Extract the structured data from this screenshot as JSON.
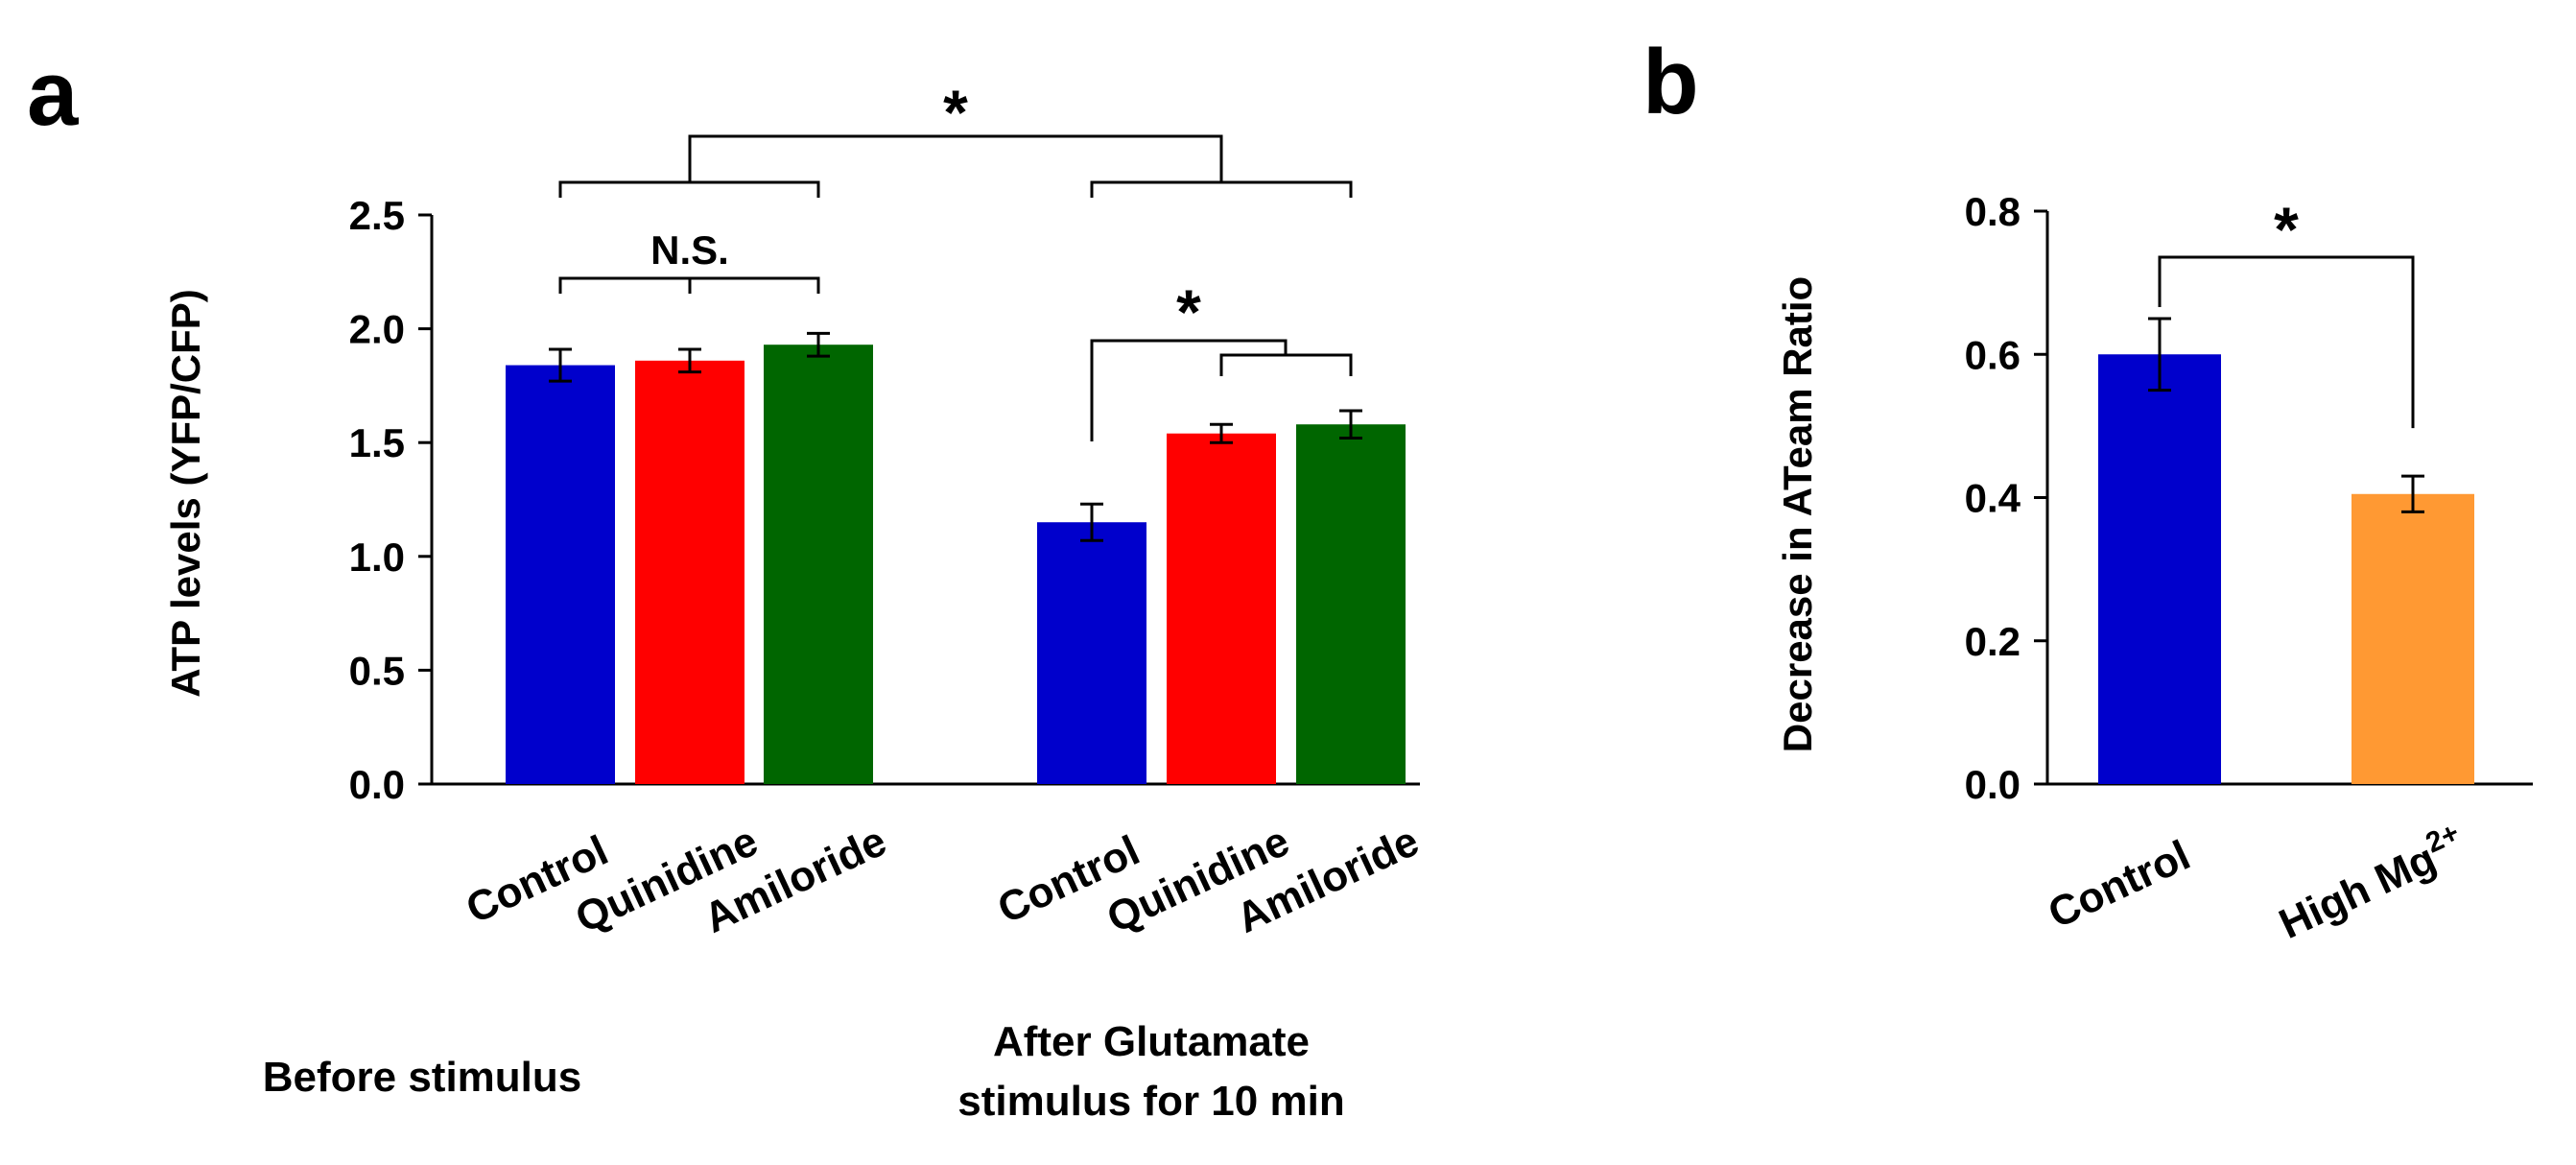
{
  "chart_data": [
    {
      "panel": "a",
      "type": "bar",
      "ylabel": "ATP levels (YFP/CFP)",
      "ylim": [
        0,
        2.5
      ],
      "yticks": [
        "0.0",
        "0.5",
        "1.0",
        "1.5",
        "2.0",
        "2.5"
      ],
      "groups": [
        {
          "name": "Before stimulus",
          "label_lines": [
            "Before stimulus"
          ],
          "bars": [
            {
              "category": "Control",
              "value": 1.84,
              "error": 0.07,
              "color": "#0000CC"
            },
            {
              "category": "Quinidine",
              "value": 1.86,
              "error": 0.05,
              "color": "#FF0000"
            },
            {
              "category": "Amiloride",
              "value": 1.93,
              "error": 0.05,
              "color": "#006600"
            }
          ]
        },
        {
          "name": "After Glutamate stimulus for 10 min",
          "label_lines": [
            "After Glutamate",
            "stimulus for 10 min"
          ],
          "bars": [
            {
              "category": "Control",
              "value": 1.15,
              "error": 0.08,
              "color": "#0000CC"
            },
            {
              "category": "Quinidine",
              "value": 1.54,
              "error": 0.04,
              "color": "#FF0000"
            },
            {
              "category": "Amiloride",
              "value": 1.58,
              "error": 0.06,
              "color": "#006600"
            }
          ]
        }
      ],
      "annotations": [
        {
          "label": "*",
          "between": "Before stimulus vs After Glutamate stimulus"
        },
        {
          "label": "N.S.",
          "between": "Before stimulus: Control vs Quinidine vs Amiloride"
        },
        {
          "label": "*",
          "between": "After stimulus: Control vs Quinidine, Amiloride"
        }
      ]
    },
    {
      "panel": "b",
      "type": "bar",
      "ylabel": "Decrease in ATeam Ratio",
      "ylim": [
        0,
        0.8
      ],
      "yticks": [
        "0.0",
        "0.2",
        "0.4",
        "0.6",
        "0.8"
      ],
      "bars": [
        {
          "category": "Control",
          "value": 0.6,
          "error": 0.05,
          "color": "#0000CC"
        },
        {
          "category": "High Mg",
          "superscript": "2+",
          "value": 0.405,
          "error": 0.025,
          "color": "#FF9933"
        }
      ],
      "annotations": [
        {
          "label": "*",
          "between": "Control vs High Mg2+"
        }
      ]
    }
  ]
}
